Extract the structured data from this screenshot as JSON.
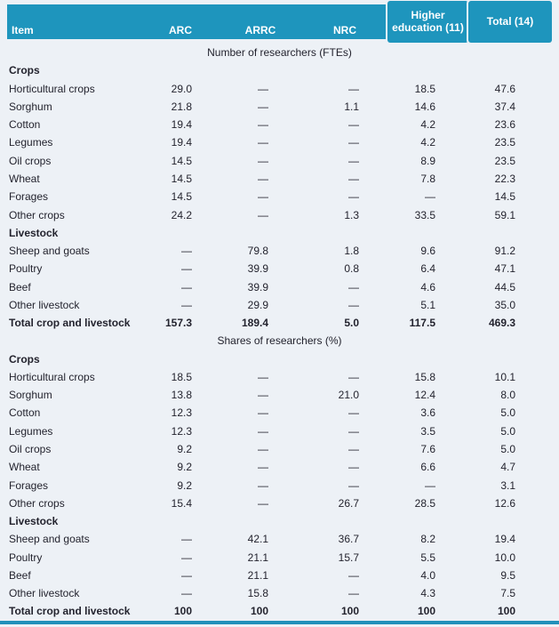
{
  "colors": {
    "header_bg": "#1E95BD",
    "page_bg": "#EDF1F6",
    "bottom_rule": "#2090BA",
    "text": "#23232E",
    "header_text": "#FFFFFF"
  },
  "table": {
    "columns": [
      "Item",
      "ARC",
      "ARRC",
      "NRC",
      "Higher education (11)",
      "Total (14)"
    ],
    "sections": [
      {
        "title": "Number of researchers (FTEs)",
        "rows": [
          {
            "type": "group",
            "label": "Crops",
            "values": [
              "",
              "",
              "",
              "",
              ""
            ]
          },
          {
            "type": "data",
            "label": "Horticultural crops",
            "values": [
              "29.0",
              "—",
              "—",
              "18.5",
              "47.6"
            ]
          },
          {
            "type": "data",
            "label": "Sorghum",
            "values": [
              "21.8",
              "—",
              "1.1",
              "14.6",
              "37.4"
            ]
          },
          {
            "type": "data",
            "label": "Cotton",
            "values": [
              "19.4",
              "—",
              "—",
              "4.2",
              "23.6"
            ]
          },
          {
            "type": "data",
            "label": "Legumes",
            "values": [
              "19.4",
              "—",
              "—",
              "4.2",
              "23.5"
            ]
          },
          {
            "type": "data",
            "label": "Oil crops",
            "values": [
              "14.5",
              "—",
              "—",
              "8.9",
              "23.5"
            ]
          },
          {
            "type": "data",
            "label": "Wheat",
            "values": [
              "14.5",
              "—",
              "—",
              "7.8",
              "22.3"
            ]
          },
          {
            "type": "data",
            "label": "Forages",
            "values": [
              "14.5",
              "—",
              "—",
              "—",
              "14.5"
            ]
          },
          {
            "type": "data",
            "label": "Other crops",
            "values": [
              "24.2",
              "—",
              "1.3",
              "33.5",
              "59.1"
            ]
          },
          {
            "type": "group",
            "label": "Livestock",
            "values": [
              "",
              "",
              "",
              "",
              ""
            ]
          },
          {
            "type": "data",
            "label": "Sheep and goats",
            "values": [
              "—",
              "79.8",
              "1.8",
              "9.6",
              "91.2"
            ]
          },
          {
            "type": "data",
            "label": "Poultry",
            "values": [
              "—",
              "39.9",
              "0.8",
              "6.4",
              "47.1"
            ]
          },
          {
            "type": "data",
            "label": "Beef",
            "values": [
              "—",
              "39.9",
              "—",
              "4.6",
              "44.5"
            ]
          },
          {
            "type": "data",
            "label": "Other livestock",
            "values": [
              "—",
              "29.9",
              "—",
              "5.1",
              "35.0"
            ]
          },
          {
            "type": "total",
            "label": "Total crop and livestock",
            "values": [
              "157.3",
              "189.4",
              "5.0",
              "117.5",
              "469.3"
            ]
          }
        ]
      },
      {
        "title": "Shares of researchers (%)",
        "rows": [
          {
            "type": "group",
            "label": "Crops",
            "values": [
              "",
              "",
              "",
              "",
              ""
            ]
          },
          {
            "type": "data",
            "label": "Horticultural crops",
            "values": [
              "18.5",
              "—",
              "—",
              "15.8",
              "10.1"
            ]
          },
          {
            "type": "data",
            "label": "Sorghum",
            "values": [
              "13.8",
              "—",
              "21.0",
              "12.4",
              "8.0"
            ]
          },
          {
            "type": "data",
            "label": "Cotton",
            "values": [
              "12.3",
              "—",
              "—",
              "3.6",
              "5.0"
            ]
          },
          {
            "type": "data",
            "label": "Legumes",
            "values": [
              "12.3",
              "—",
              "—",
              "3.5",
              "5.0"
            ]
          },
          {
            "type": "data",
            "label": "Oil crops",
            "values": [
              "9.2",
              "—",
              "—",
              "7.6",
              "5.0"
            ]
          },
          {
            "type": "data",
            "label": "Wheat",
            "values": [
              "9.2",
              "—",
              "—",
              "6.6",
              "4.7"
            ]
          },
          {
            "type": "data",
            "label": "Forages",
            "values": [
              "9.2",
              "—",
              "—",
              "—",
              "3.1"
            ]
          },
          {
            "type": "data",
            "label": "Other crops",
            "values": [
              "15.4",
              "—",
              "26.7",
              "28.5",
              "12.6"
            ]
          },
          {
            "type": "group",
            "label": "Livestock",
            "values": [
              "",
              "",
              "",
              "",
              ""
            ]
          },
          {
            "type": "data",
            "label": "Sheep and goats",
            "values": [
              "—",
              "42.1",
              "36.7",
              "8.2",
              "19.4"
            ]
          },
          {
            "type": "data",
            "label": "Poultry",
            "values": [
              "—",
              "21.1",
              "15.7",
              "5.5",
              "10.0"
            ]
          },
          {
            "type": "data",
            "label": "Beef",
            "values": [
              "—",
              "21.1",
              "—",
              "4.0",
              "9.5"
            ]
          },
          {
            "type": "data",
            "label": "Other livestock",
            "values": [
              "—",
              "15.8",
              "—",
              "4.3",
              "7.5"
            ]
          },
          {
            "type": "total",
            "label": "Total crop and livestock",
            "values": [
              "100",
              "100",
              "100",
              "100",
              "100"
            ]
          }
        ]
      }
    ]
  }
}
